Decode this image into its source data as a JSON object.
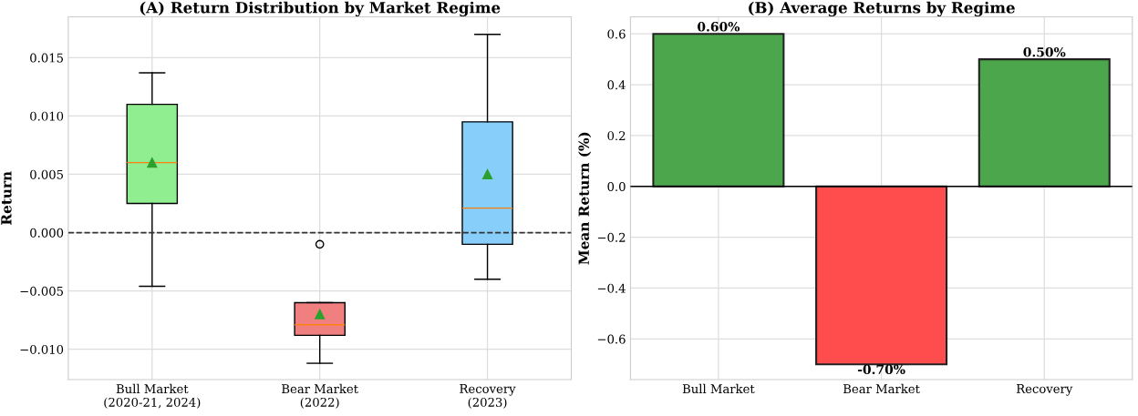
{
  "chart_data": [
    {
      "type": "box",
      "title": "(A) Return Distribution by Market Regime",
      "ylabel": "Return",
      "categories": [
        "Bull Market\n(2020-21, 2024)",
        "Bear Market\n(2022)",
        "Recovery\n(2023)"
      ],
      "colors": [
        "#90ee90",
        "#f08080",
        "#87cefa"
      ],
      "boxes": [
        {
          "low": -0.0046,
          "q1": 0.0025,
          "median": 0.006,
          "q3": 0.011,
          "high": 0.0137,
          "mean": 0.006
        },
        {
          "low": -0.0112,
          "q1": -0.0088,
          "median": -0.0079,
          "q3": -0.006,
          "high": -0.006,
          "mean": -0.007,
          "outliers": [
            -0.001
          ]
        },
        {
          "low": -0.004,
          "q1": -0.001,
          "median": 0.0021,
          "q3": 0.0095,
          "high": 0.017,
          "mean": 0.005
        }
      ],
      "ylim": [
        -0.0126,
        0.0185
      ],
      "yticks": [
        {
          "value": -0.01,
          "label": "−0.010"
        },
        {
          "value": -0.005,
          "label": "−0.005"
        },
        {
          "value": 0,
          "label": "0.000"
        },
        {
          "value": 0.005,
          "label": "0.005"
        },
        {
          "value": 0.01,
          "label": "0.010"
        },
        {
          "value": 0.015,
          "label": "0.015"
        }
      ],
      "ref_lines": [
        {
          "axis": "y",
          "value": 0,
          "color": "#333333",
          "line_style": "dashed"
        }
      ],
      "grid": true,
      "legend": false
    },
    {
      "type": "bar",
      "title": "(B) Average Returns by Regime",
      "ylabel": "Mean Return (%)",
      "categories": [
        "Bull Market",
        "Bear Market",
        "Recovery"
      ],
      "values": [
        0.6,
        -0.7,
        0.5
      ],
      "colors": [
        "#4ca64c",
        "#ff4c4c",
        "#4ca64c"
      ],
      "value_labels": [
        "0.60%",
        "-0.70%",
        "0.50%"
      ],
      "ylim": [
        -0.76,
        0.667
      ],
      "yticks": [
        {
          "value": -0.6,
          "label": "−0.6"
        },
        {
          "value": -0.4,
          "label": "−0.4"
        },
        {
          "value": -0.2,
          "label": "−0.2"
        },
        {
          "value": 0,
          "label": "0.0"
        },
        {
          "value": 0.2,
          "label": "0.2"
        },
        {
          "value": 0.4,
          "label": "0.4"
        },
        {
          "value": 0.6,
          "label": "0.6"
        }
      ],
      "ref_lines": [
        {
          "axis": "y",
          "value": 0,
          "color": "#000000",
          "line_style": "solid"
        }
      ],
      "grid": true,
      "legend": false
    }
  ]
}
